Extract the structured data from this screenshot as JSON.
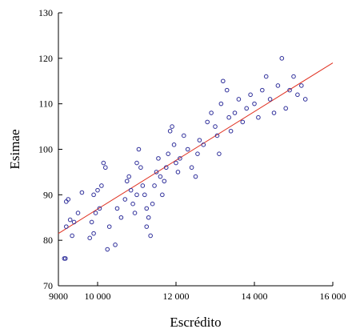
{
  "chart_data": {
    "type": "scatter",
    "xlabel": "Escrédito",
    "ylabel": "Esimae",
    "xlim": [
      9000,
      16000
    ],
    "ylim": [
      70,
      130
    ],
    "xticks": [
      9000,
      10000,
      12000,
      14000,
      16000
    ],
    "xtick_labels": [
      "9000",
      "10 000",
      "12 000",
      "14 000",
      "16 000"
    ],
    "yticks": [
      70,
      80,
      90,
      100,
      110,
      120,
      130
    ],
    "ytick_labels": [
      "70",
      "80",
      "90",
      "100",
      "110",
      "120",
      "130"
    ],
    "grid": false,
    "legend": "none",
    "colors": {
      "points": "#2e2e9a",
      "fit_line": "#e03020",
      "axes": "#000000"
    },
    "fit_line": {
      "x": [
        9000,
        16000
      ],
      "y": [
        81.5,
        119
      ]
    },
    "points": [
      {
        "x": 9150,
        "y": 76
      },
      {
        "x": 9180,
        "y": 76
      },
      {
        "x": 9200,
        "y": 88.5
      },
      {
        "x": 9250,
        "y": 89
      },
      {
        "x": 9200,
        "y": 83
      },
      {
        "x": 9300,
        "y": 84.5
      },
      {
        "x": 9400,
        "y": 84
      },
      {
        "x": 9350,
        "y": 81
      },
      {
        "x": 9500,
        "y": 86
      },
      {
        "x": 9600,
        "y": 90.5
      },
      {
        "x": 9800,
        "y": 80.5
      },
      {
        "x": 9900,
        "y": 81.5
      },
      {
        "x": 9850,
        "y": 84
      },
      {
        "x": 9950,
        "y": 86
      },
      {
        "x": 9900,
        "y": 90
      },
      {
        "x": 10000,
        "y": 91
      },
      {
        "x": 10050,
        "y": 87
      },
      {
        "x": 10100,
        "y": 92
      },
      {
        "x": 10150,
        "y": 97
      },
      {
        "x": 10200,
        "y": 96
      },
      {
        "x": 10300,
        "y": 83
      },
      {
        "x": 10250,
        "y": 78
      },
      {
        "x": 10450,
        "y": 79
      },
      {
        "x": 10500,
        "y": 87
      },
      {
        "x": 10600,
        "y": 85
      },
      {
        "x": 10700,
        "y": 89
      },
      {
        "x": 10750,
        "y": 93
      },
      {
        "x": 10800,
        "y": 94
      },
      {
        "x": 10850,
        "y": 91
      },
      {
        "x": 10900,
        "y": 88
      },
      {
        "x": 10950,
        "y": 86
      },
      {
        "x": 11000,
        "y": 90
      },
      {
        "x": 11000,
        "y": 97
      },
      {
        "x": 11050,
        "y": 100
      },
      {
        "x": 11100,
        "y": 96
      },
      {
        "x": 11150,
        "y": 92
      },
      {
        "x": 11200,
        "y": 90
      },
      {
        "x": 11250,
        "y": 87
      },
      {
        "x": 11300,
        "y": 85
      },
      {
        "x": 11250,
        "y": 83
      },
      {
        "x": 11350,
        "y": 81
      },
      {
        "x": 11400,
        "y": 88
      },
      {
        "x": 11450,
        "y": 92
      },
      {
        "x": 11500,
        "y": 95
      },
      {
        "x": 11550,
        "y": 98
      },
      {
        "x": 11600,
        "y": 94
      },
      {
        "x": 11650,
        "y": 90
      },
      {
        "x": 11700,
        "y": 93
      },
      {
        "x": 11750,
        "y": 96
      },
      {
        "x": 11800,
        "y": 99
      },
      {
        "x": 11850,
        "y": 104
      },
      {
        "x": 11900,
        "y": 105
      },
      {
        "x": 11950,
        "y": 101
      },
      {
        "x": 12000,
        "y": 97
      },
      {
        "x": 12050,
        "y": 95
      },
      {
        "x": 12100,
        "y": 98
      },
      {
        "x": 12200,
        "y": 103
      },
      {
        "x": 12300,
        "y": 100
      },
      {
        "x": 12400,
        "y": 96
      },
      {
        "x": 12500,
        "y": 94
      },
      {
        "x": 12550,
        "y": 99
      },
      {
        "x": 12600,
        "y": 102
      },
      {
        "x": 12700,
        "y": 101
      },
      {
        "x": 12800,
        "y": 106
      },
      {
        "x": 12900,
        "y": 108
      },
      {
        "x": 13000,
        "y": 105
      },
      {
        "x": 13050,
        "y": 103
      },
      {
        "x": 13100,
        "y": 99
      },
      {
        "x": 13150,
        "y": 110
      },
      {
        "x": 13200,
        "y": 115
      },
      {
        "x": 13300,
        "y": 113
      },
      {
        "x": 13350,
        "y": 107
      },
      {
        "x": 13400,
        "y": 104
      },
      {
        "x": 13500,
        "y": 108
      },
      {
        "x": 13600,
        "y": 111
      },
      {
        "x": 13700,
        "y": 106
      },
      {
        "x": 13800,
        "y": 109
      },
      {
        "x": 13900,
        "y": 112
      },
      {
        "x": 14000,
        "y": 110
      },
      {
        "x": 14100,
        "y": 107
      },
      {
        "x": 14200,
        "y": 113
      },
      {
        "x": 14300,
        "y": 116
      },
      {
        "x": 14400,
        "y": 111
      },
      {
        "x": 14500,
        "y": 108
      },
      {
        "x": 14600,
        "y": 114
      },
      {
        "x": 14700,
        "y": 120
      },
      {
        "x": 14800,
        "y": 109
      },
      {
        "x": 14900,
        "y": 113
      },
      {
        "x": 15000,
        "y": 116
      },
      {
        "x": 15100,
        "y": 112
      },
      {
        "x": 15200,
        "y": 114
      },
      {
        "x": 15300,
        "y": 111
      }
    ]
  }
}
